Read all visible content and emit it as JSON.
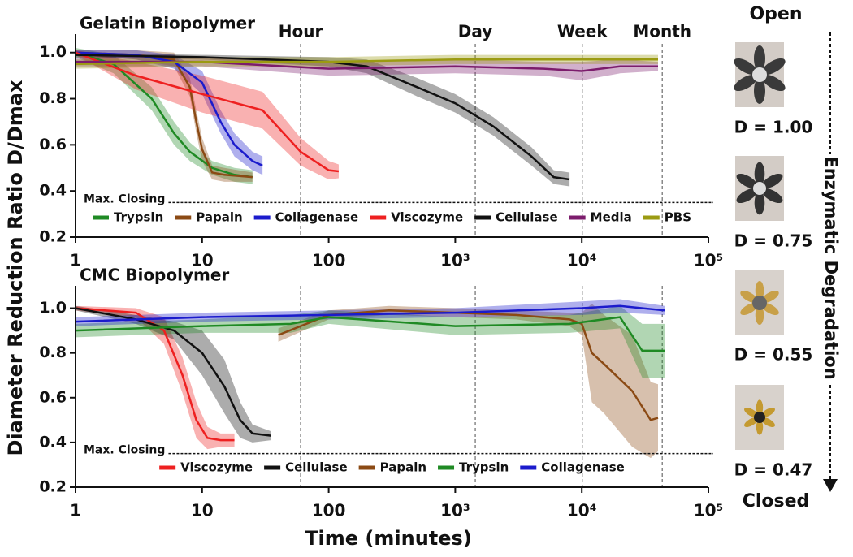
{
  "figure": {
    "ylabel": "Diameter Reduction Ratio D/Dmax",
    "xlabel": "Time  (minutes)"
  },
  "panel": {
    "top": "Open",
    "bottom": "Closed",
    "side_label": "Enzymatic Degradation",
    "states": [
      "D = 1.00",
      "D = 0.75",
      "D = 0.55",
      "D = 0.47"
    ]
  },
  "chart_data": [
    {
      "type": "line",
      "title": "Gelatin Biopolymer",
      "xscale": "log",
      "legend": "bottom",
      "xlim": [
        1,
        100000
      ],
      "ylim": [
        0.2,
        1.08
      ],
      "xticks": [
        1,
        10,
        100,
        {
          "value": 1000,
          "label": "10³"
        },
        {
          "value": 10000,
          "label": "10⁴"
        },
        {
          "value": 100000,
          "label": "10⁵"
        }
      ],
      "yticks": [
        0.2,
        0.4,
        0.6,
        0.8,
        {
          "value": 1,
          "label": "1.0"
        }
      ],
      "vlines": [
        {
          "value": 60,
          "label": "Hour"
        },
        {
          "value": 1440,
          "label": "Day"
        },
        {
          "value": 10080,
          "label": "Week"
        },
        {
          "value": 43200,
          "label": "Month"
        }
      ],
      "hline": {
        "value": 0.35,
        "label": "Max. Closing"
      },
      "series": [
        {
          "name": "Trypsin",
          "color": "#1f8a24",
          "x": [
            1,
            2,
            4,
            6,
            8,
            12,
            18,
            25
          ],
          "values": [
            1.0,
            0.95,
            0.8,
            0.65,
            0.57,
            0.5,
            0.47,
            0.46
          ],
          "errors": [
            0.02,
            0.04,
            0.05,
            0.05,
            0.04,
            0.03,
            0.03,
            0.03
          ]
        },
        {
          "name": "Papain",
          "color": "#8b4a14",
          "x": [
            1,
            3,
            6,
            8,
            9,
            10,
            12,
            15,
            25
          ],
          "values": [
            1.0,
            0.99,
            0.97,
            0.85,
            0.7,
            0.58,
            0.48,
            0.47,
            0.46
          ],
          "errors": [
            0.01,
            0.02,
            0.03,
            0.04,
            0.05,
            0.05,
            0.03,
            0.03,
            0.02
          ]
        },
        {
          "name": "Collagenase",
          "color": "#1b1bcc",
          "x": [
            1,
            3,
            6,
            10,
            14,
            18,
            25,
            30
          ],
          "values": [
            1.0,
            0.99,
            0.96,
            0.87,
            0.7,
            0.6,
            0.53,
            0.51
          ],
          "errors": [
            0.01,
            0.02,
            0.03,
            0.05,
            0.05,
            0.05,
            0.04,
            0.04
          ]
        },
        {
          "name": "Viscozyme",
          "color": "#ee2020",
          "x": [
            1,
            3,
            10,
            30,
            60,
            100,
            120
          ],
          "values": [
            1.0,
            0.9,
            0.82,
            0.75,
            0.57,
            0.49,
            0.485
          ],
          "errors": [
            0.01,
            0.06,
            0.08,
            0.08,
            0.06,
            0.04,
            0.03
          ]
        },
        {
          "name": "Cellulase",
          "color": "#111111",
          "x": [
            1,
            10,
            100,
            200,
            500,
            1000,
            2000,
            4000,
            6000,
            8000
          ],
          "values": [
            0.99,
            0.98,
            0.96,
            0.94,
            0.85,
            0.78,
            0.68,
            0.55,
            0.46,
            0.45
          ],
          "errors": [
            0.01,
            0.01,
            0.02,
            0.03,
            0.04,
            0.04,
            0.04,
            0.04,
            0.03,
            0.03
          ]
        },
        {
          "name": "Media",
          "color": "#7c1c6c",
          "x": [
            1,
            10,
            100,
            1000,
            5000,
            10000,
            20000,
            40000
          ],
          "values": [
            0.96,
            0.96,
            0.93,
            0.94,
            0.93,
            0.92,
            0.94,
            0.94
          ],
          "errors": [
            0.02,
            0.02,
            0.03,
            0.03,
            0.03,
            0.04,
            0.03,
            0.02
          ]
        },
        {
          "name": "PBS",
          "color": "#9b9b12",
          "x": [
            1,
            10,
            100,
            1000,
            10000,
            20000,
            40000
          ],
          "values": [
            0.95,
            0.96,
            0.96,
            0.97,
            0.97,
            0.97,
            0.97
          ],
          "errors": [
            0.02,
            0.02,
            0.02,
            0.02,
            0.02,
            0.02,
            0.02
          ]
        }
      ]
    },
    {
      "type": "line",
      "title": "CMC Biopolymer",
      "xscale": "log",
      "legend": "bottom",
      "xlim": [
        1,
        100000
      ],
      "ylim": [
        0.2,
        1.1
      ],
      "xticks": [
        1,
        10,
        100,
        {
          "value": 1000,
          "label": "10³"
        },
        {
          "value": 10000,
          "label": "10⁴"
        },
        {
          "value": 100000,
          "label": "10⁵"
        }
      ],
      "yticks": [
        0.2,
        0.4,
        0.6,
        0.8,
        {
          "value": 1,
          "label": "1.0"
        }
      ],
      "vlines": [
        60,
        1440,
        10080,
        43200
      ],
      "hline": {
        "value": 0.35,
        "label": "Max. Closing"
      },
      "series": [
        {
          "name": "Viscozyme",
          "color": "#ee2020",
          "x": [
            1,
            3,
            5,
            7,
            9,
            11,
            14,
            18
          ],
          "values": [
            1.0,
            0.98,
            0.9,
            0.7,
            0.5,
            0.42,
            0.41,
            0.41
          ],
          "errors": [
            0.01,
            0.02,
            0.06,
            0.08,
            0.08,
            0.05,
            0.03,
            0.03
          ]
        },
        {
          "name": "Cellulase",
          "color": "#111111",
          "x": [
            1,
            3,
            6,
            10,
            15,
            20,
            25,
            35
          ],
          "values": [
            1.0,
            0.95,
            0.9,
            0.8,
            0.65,
            0.5,
            0.44,
            0.43
          ],
          "errors": [
            0.01,
            0.02,
            0.04,
            0.1,
            0.12,
            0.08,
            0.04,
            0.02
          ]
        },
        {
          "name": "Papain",
          "color": "#8b4a14",
          "x": [
            40,
            100,
            300,
            1000,
            3000,
            8000,
            10000,
            12000,
            15000,
            25000,
            35000,
            40000
          ],
          "values": [
            0.88,
            0.97,
            0.99,
            0.98,
            0.97,
            0.95,
            0.93,
            0.8,
            0.75,
            0.63,
            0.5,
            0.51
          ],
          "errors": [
            0.03,
            0.02,
            0.02,
            0.02,
            0.02,
            0.03,
            0.05,
            0.22,
            0.22,
            0.25,
            0.17,
            0.15
          ]
        },
        {
          "name": "Trypsin",
          "color": "#1f8a24",
          "x": [
            1,
            10,
            50,
            100,
            1000,
            8000,
            20000,
            30000,
            45000
          ],
          "values": [
            0.9,
            0.92,
            0.93,
            0.96,
            0.92,
            0.93,
            0.96,
            0.81,
            0.81
          ],
          "errors": [
            0.03,
            0.03,
            0.04,
            0.03,
            0.04,
            0.04,
            0.05,
            0.12,
            0.12
          ]
        },
        {
          "name": "Collagenase",
          "color": "#1b1bcc",
          "x": [
            1,
            10,
            100,
            1000,
            10000,
            20000,
            45000
          ],
          "values": [
            0.94,
            0.96,
            0.97,
            0.98,
            1.0,
            1.01,
            0.99
          ],
          "errors": [
            0.02,
            0.02,
            0.02,
            0.02,
            0.03,
            0.03,
            0.02
          ]
        }
      ]
    }
  ]
}
